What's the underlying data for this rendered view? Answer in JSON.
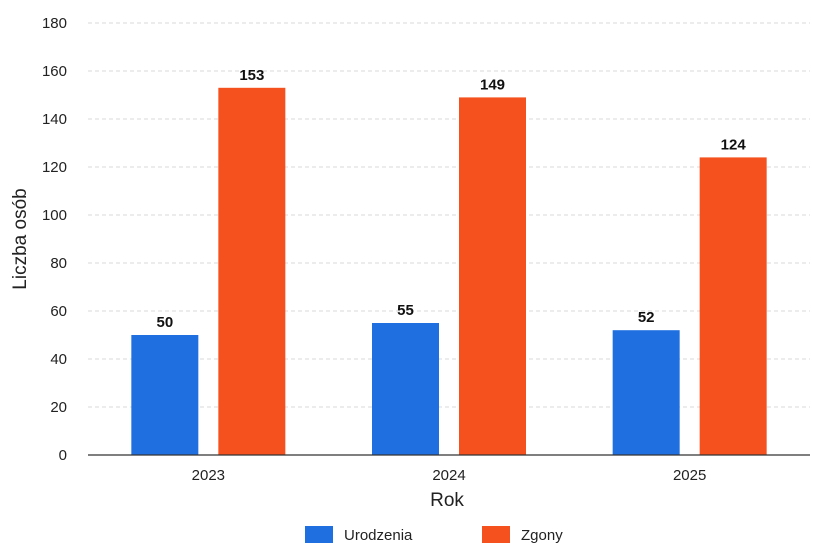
{
  "chart_data": {
    "type": "bar",
    "categories": [
      "2023",
      "2024",
      "2025"
    ],
    "series": [
      {
        "name": "Urodzenia",
        "values": [
          50,
          55,
          52
        ],
        "color": "#1f6fe0"
      },
      {
        "name": "Zgony",
        "values": [
          153,
          149,
          124
        ],
        "color": "#f4511e"
      }
    ],
    "xlabel": "Rok",
    "ylabel": "Liczba osób",
    "ylim": [
      0,
      180
    ],
    "yticks": [
      0,
      20,
      40,
      60,
      80,
      100,
      120,
      140,
      160,
      180
    ],
    "grid": true,
    "legend_position": "bottom"
  }
}
